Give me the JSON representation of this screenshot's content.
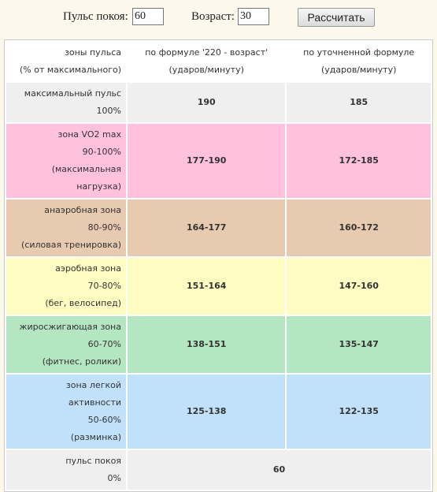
{
  "form": {
    "pulse_label": "Пульс покоя:",
    "pulse_value": "60",
    "age_label": "Возраст:",
    "age_value": "30",
    "button": "Рассчитать"
  },
  "table": {
    "header": [
      [
        "зоны пульса",
        "(% от максимального)"
      ],
      [
        "по формуле '220 - возраст'",
        "(ударов/минуту)"
      ],
      [
        "по уточненной формуле",
        "(ударов/минуту)"
      ]
    ],
    "rows": [
      {
        "lines": [
          "максимальный пульс",
          "100%"
        ],
        "cells": [
          "190",
          "185"
        ],
        "color": "#efefef"
      },
      {
        "lines": [
          "зона VO2 max",
          "90-100%",
          "(максимальная нагрузка)"
        ],
        "cells": [
          "177-190",
          "172-185"
        ],
        "color": "#ffc1dc"
      },
      {
        "lines": [
          "анаэробная зона",
          "80-90%",
          "(силовая тренировка)"
        ],
        "cells": [
          "164-177",
          "160-172"
        ],
        "color": "#e7cab0"
      },
      {
        "lines": [
          "аэробная зона",
          "70-80%",
          "(бег, велосипед)"
        ],
        "cells": [
          "151-164",
          "147-160"
        ],
        "color": "#fffcc2"
      },
      {
        "lines": [
          "жиросжигающая зона",
          "60-70%",
          "(фитнес, ролики)"
        ],
        "cells": [
          "138-151",
          "135-147"
        ],
        "color": "#b4e6c1"
      },
      {
        "lines": [
          "зона легкой активности",
          "50-60%",
          "(разминка)"
        ],
        "cells": [
          "125-138",
          "122-135"
        ],
        "color": "#c1e1fb"
      },
      {
        "lines": [
          "пульс покоя",
          "0%"
        ],
        "cells": [
          "60"
        ],
        "color": "#efefef"
      }
    ]
  }
}
